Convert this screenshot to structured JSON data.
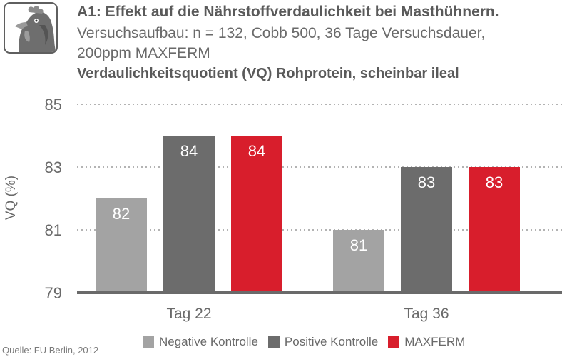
{
  "header": {
    "title": "A1: Effekt auf die Nährstoffverdaulichkeit bei Masthühnern.",
    "subtitle_line1": "Versuchsaufbau: n = 132, Cobb 500, 36 Tage Versuchsdauer,",
    "subtitle_line2": "200ppm MAXFERM",
    "metric_label": "Verdaulichkeitsquotient (VQ) Rohprotein, scheinbar ileal",
    "logo_icon": "chicken-head-icon"
  },
  "chart_data": {
    "type": "bar",
    "title": "Verdaulichkeitsquotient (VQ) Rohprotein, scheinbar ileal",
    "ylabel": "VQ (%)",
    "xlabel": "",
    "categories": [
      "Tag 22",
      "Tag 36"
    ],
    "ylim": [
      79,
      85
    ],
    "yticks": [
      79,
      81,
      83,
      85
    ],
    "grid": true,
    "legend_position": "bottom",
    "series": [
      {
        "name": "Negative Kontrolle",
        "values": [
          82,
          81
        ],
        "labels": [
          "82",
          "81"
        ],
        "color": "#a3a3a3"
      },
      {
        "name": "Positive Kontrolle",
        "values": [
          84,
          83
        ],
        "labels": [
          "84",
          "83"
        ],
        "color": "#6c6c6c"
      },
      {
        "name": "MAXFERM",
        "values": [
          84,
          83
        ],
        "labels": [
          "84",
          "83"
        ],
        "color": "#d81e2c"
      }
    ]
  },
  "footer": {
    "source": "Quelle: FU Berlin, 2012"
  }
}
